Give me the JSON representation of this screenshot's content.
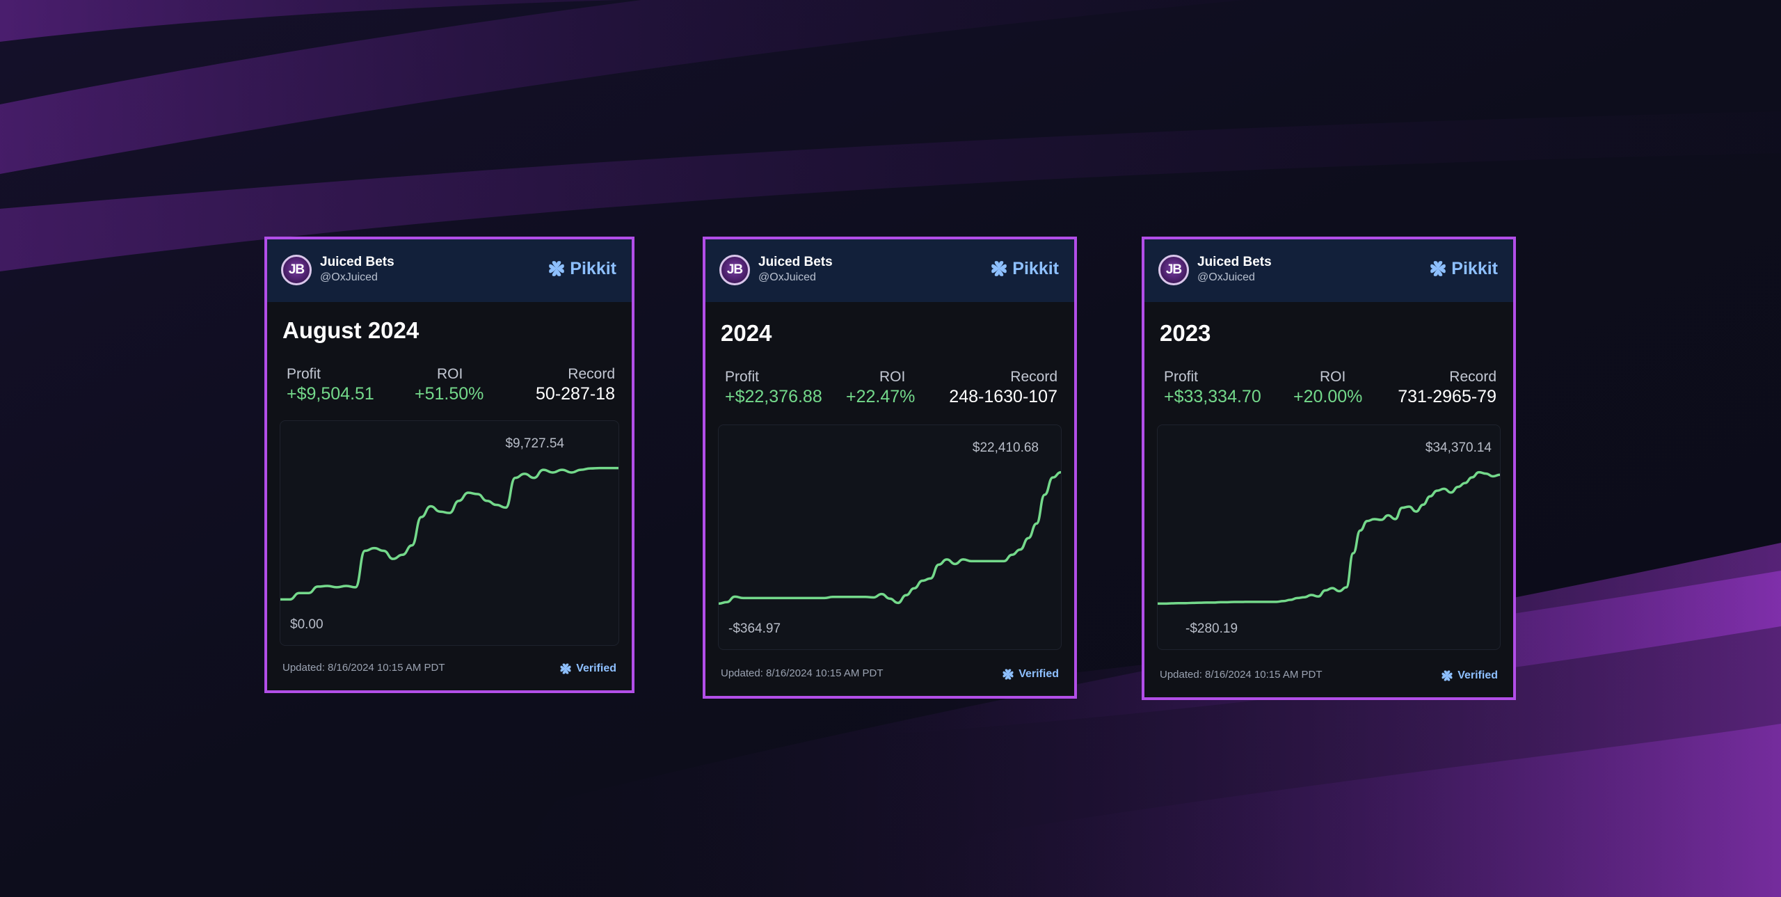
{
  "colors": {
    "background": "#0d0d1c",
    "accent_border": "#b24ee8",
    "positive": "#74d98b",
    "brand": "#8ec0ff"
  },
  "cards": [
    {
      "user_name": "Juiced Bets",
      "user_handle": "@OxJuiced",
      "avatar_text": "JB",
      "avatar_icon": "jb-avatar-icon",
      "brand_name": "Pikkit",
      "brand_icon": "pikkit-clover-icon",
      "title": "August 2024",
      "stats": {
        "profit_label": "Profit",
        "profit_value": "+$9,504.51",
        "roi_label": "ROI",
        "roi_value": "+51.50%",
        "record_label": "Record",
        "record_value": "50-287-18"
      },
      "chart_max_label": "$9,727.54",
      "chart_min_label": "$0.00",
      "updated_text": "Updated: 8/16/2024 10:15 AM PDT",
      "verified_text": "Verified",
      "verified_icon": "verified-clover-icon"
    },
    {
      "user_name": "Juiced Bets",
      "user_handle": "@OxJuiced",
      "avatar_text": "JB",
      "avatar_icon": "jb-avatar-icon",
      "brand_name": "Pikkit",
      "brand_icon": "pikkit-clover-icon",
      "title": "2024",
      "stats": {
        "profit_label": "Profit",
        "profit_value": "+$22,376.88",
        "roi_label": "ROI",
        "roi_value": "+22.47%",
        "record_label": "Record",
        "record_value": "248-1630-107"
      },
      "chart_max_label": "$22,410.68",
      "chart_min_label": "-$364.97",
      "updated_text": "Updated: 8/16/2024 10:15 AM PDT",
      "verified_text": "Verified",
      "verified_icon": "verified-clover-icon"
    },
    {
      "user_name": "Juiced Bets",
      "user_handle": "@OxJuiced",
      "avatar_text": "JB",
      "avatar_icon": "jb-avatar-icon",
      "brand_name": "Pikkit",
      "brand_icon": "pikkit-clover-icon",
      "title": "2023",
      "stats": {
        "profit_label": "Profit",
        "profit_value": "+$33,334.70",
        "roi_label": "ROI",
        "roi_value": "+20.00%",
        "record_label": "Record",
        "record_value": "731-2965-79"
      },
      "chart_max_label": "$34,370.14",
      "chart_min_label": "-$280.19",
      "updated_text": "Updated: 8/16/2024 10:15 AM PDT",
      "verified_text": "Verified",
      "verified_icon": "verified-clover-icon"
    }
  ],
  "chart_data": [
    {
      "type": "line",
      "title": "August 2024",
      "xlabel": "",
      "ylabel": "",
      "grid": false,
      "ylim": [
        0,
        9727.54
      ],
      "series": [
        {
          "values": [
            0,
            0,
            470,
            470,
            950,
            1000,
            900,
            1000,
            900,
            3600,
            3800,
            3600,
            3000,
            3300,
            4000,
            6100,
            6900,
            6500,
            6400,
            7300,
            7900,
            7800,
            7300,
            7000,
            6800,
            9000,
            9300,
            9000,
            9600,
            9400,
            9600,
            9400,
            9600,
            9700,
            9727.54,
            9727.54,
            9727.54
          ]
        }
      ]
    },
    {
      "type": "line",
      "title": "2024",
      "xlabel": "",
      "ylabel": "",
      "grid": false,
      "ylim": [
        -364.97,
        22410.68
      ],
      "series": [
        {
          "values": [
            -364.97,
            -100,
            850,
            600,
            600,
            600,
            600,
            600,
            600,
            600,
            600,
            600,
            600,
            600,
            800,
            800,
            800,
            800,
            800,
            700,
            1300,
            500,
            -250,
            1100,
            2300,
            3600,
            4000,
            6400,
            7300,
            6500,
            7300,
            7000,
            7000,
            7000,
            7000,
            7000,
            8100,
            9000,
            11000,
            13500,
            18500,
            21500,
            22410.68
          ]
        }
      ]
    },
    {
      "type": "line",
      "title": "2023",
      "xlabel": "",
      "ylabel": "",
      "grid": false,
      "ylim": [
        -280.19,
        34370.14
      ],
      "series": [
        {
          "values": [
            -280.19,
            -280.19,
            -200,
            -150,
            -150,
            -100,
            -50,
            0,
            0,
            100,
            100,
            150,
            150,
            200,
            200,
            200,
            200,
            200,
            400,
            700,
            1200,
            1400,
            2000,
            1600,
            3200,
            3800,
            3000,
            4000,
            13000,
            19000,
            21500,
            22000,
            21800,
            23000,
            22000,
            25000,
            25300,
            24000,
            25800,
            28000,
            29500,
            30000,
            29000,
            30500,
            31500,
            33000,
            34370.14,
            34000,
            33300,
            33700
          ]
        }
      ]
    }
  ]
}
